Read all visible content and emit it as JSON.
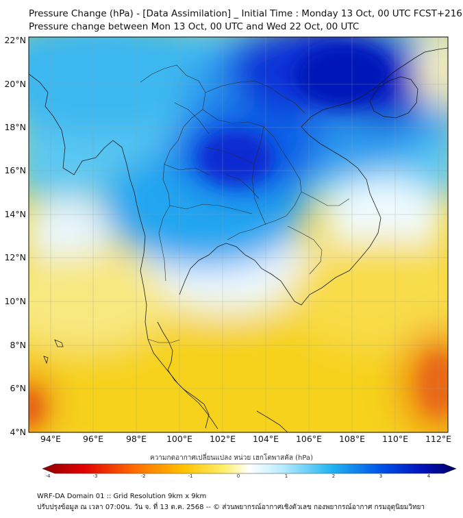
{
  "title_line1": "Pressure Change (hPa) - [Data Assimilation] _ Initial Time : Monday 13 Oct, 00 UTC FCST+216",
  "title_line2": "Pressure change between Mon 13 Oct, 00 UTC and Wed 22 Oct, 00 UTC",
  "y_ticks": [
    "22°N",
    "20°N",
    "18°N",
    "16°N",
    "14°N",
    "12°N",
    "10°N",
    "8°N",
    "6°N",
    "4°N"
  ],
  "x_ticks": [
    "94°E",
    "96°E",
    "98°E",
    "100°E",
    "102°E",
    "104°E",
    "106°E",
    "108°E",
    "110°E",
    "112°E"
  ],
  "colorbar": {
    "label": "ความกดอากาศเปลี่ยนแปลง หน่วย เฮกโตพาสคัล (hPa)",
    "ticks": [
      "-4",
      "-3",
      "-2",
      "-1",
      "0",
      "1",
      "2",
      "3",
      "4"
    ]
  },
  "footer_line1": "WRF-DA Domain 01 :: Grid Resolution 9km x 9km",
  "footer_line2": "ปรับปรุงข้อมูล ณ เวลา 07:00น. วัน จ. ที่ 13 ต.ค. 2568 -- © ส่วนพยากรณ์อากาศเชิงตัวเลข กองพยากรณ์อากาศ กรมอุตุนิยมวิทยา",
  "colors": {
    "strong_fall": "#0010c8",
    "fall": "#00a8f0",
    "neutral": "#ffffff",
    "rise": "#f8d820",
    "strong_rise": "#e85010",
    "extreme_rise": "#8b0000",
    "extreme_fall": "#000060"
  }
}
